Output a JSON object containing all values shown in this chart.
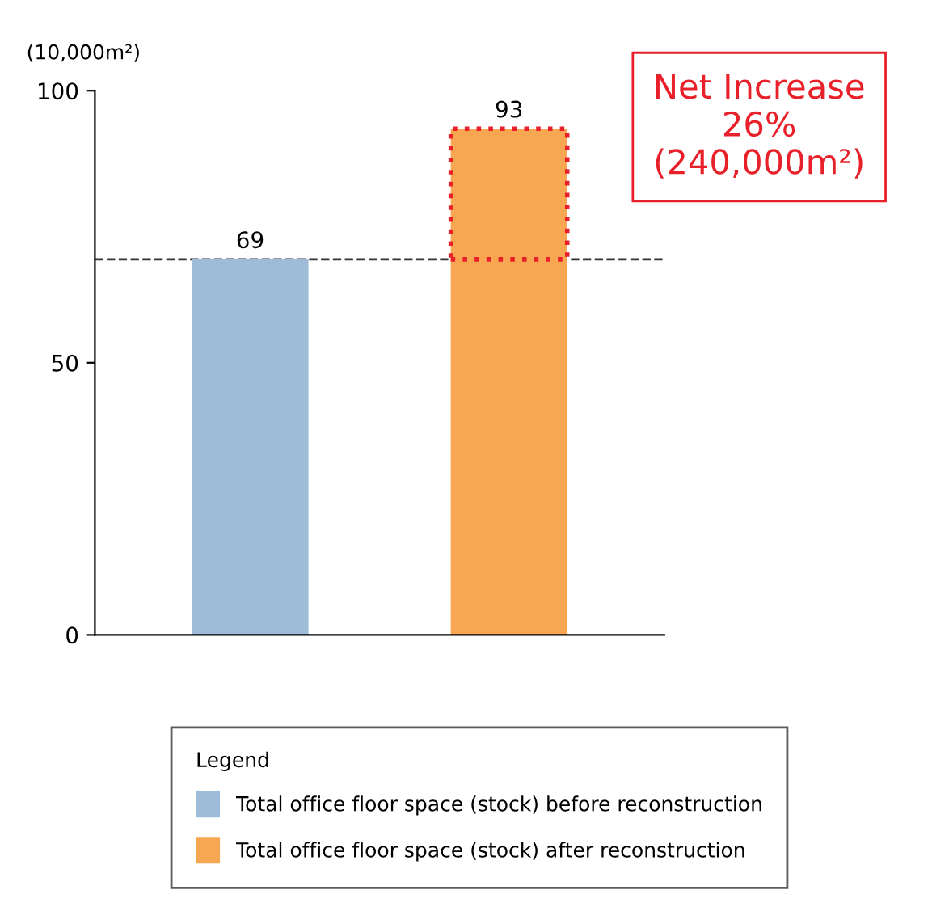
{
  "chart_data": {
    "type": "bar",
    "ylabel": "(10,000m²)",
    "categories": [
      null,
      null
    ],
    "series": [
      {
        "name": "Total office floor space (stock) before reconstruction",
        "color": "#9ebcd8",
        "values": [
          69,
          null
        ]
      },
      {
        "name": "Total office floor space (stock) after reconstruction",
        "color": "#f7a751",
        "values": [
          null,
          93
        ]
      }
    ],
    "ylim": [
      0,
      100
    ],
    "yticks": [
      0,
      50,
      100
    ],
    "grid": false,
    "data_labels": true,
    "legend": "bottom",
    "legend_title": "Legend",
    "ref_lines": [
      {
        "axis": "y",
        "value": 69,
        "color": "#333333",
        "line_style": "dashed"
      }
    ],
    "annotations": [
      "Net Increase\n26%\n(240,000m²)"
    ]
  }
}
